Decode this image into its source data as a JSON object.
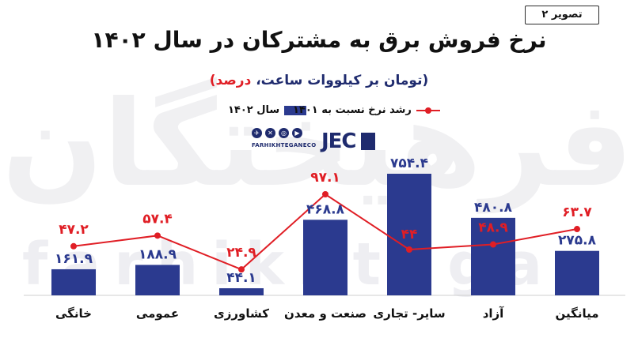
{
  "badge": "تصویر ۲",
  "title": "نرخ فروش برق به مشترکان در سال ۱۴۰۲",
  "subtitle_unit": "(تومان بر کیلووات ساعت،",
  "subtitle_pct": "درصد)",
  "legend": {
    "bar": "سال ۱۴۰۲",
    "line": "رشد نرخ نسبت به ۱۴۰۱"
  },
  "brand": {
    "url": "FARHIKHTEGANECO",
    "logo": "JEC",
    "icons": [
      "telegram-icon",
      "x-icon",
      "instagram-icon",
      "youtube-icon"
    ]
  },
  "watermark": {
    "fa": "فرهیختگان",
    "en": "farhikhtegan"
  },
  "colors": {
    "bar": "#2b3a8f",
    "line": "#e01e25",
    "text": "#111111"
  },
  "chart_data": {
    "type": "bar",
    "categories": [
      "خانگی",
      "عمومی",
      "کشاورزی",
      "صنعت و معدن",
      "سایر- تجاری",
      "آزاد",
      "میانگین"
    ],
    "series": [
      {
        "name": "سال ۱۴۰۲",
        "type": "bar",
        "values": [
          161.9,
          188.9,
          44.1,
          468.8,
          754.4,
          480.8,
          275.8
        ],
        "labels": [
          "۱۶۱.۹",
          "۱۸۸.۹",
          "۴۴.۱",
          "۴۶۸.۸",
          "۷۵۴.۴",
          "۴۸۰.۸",
          "۲۷۵.۸"
        ]
      },
      {
        "name": "رشد نرخ نسبت به ۱۴۰۱",
        "type": "line",
        "values": [
          47.2,
          57.4,
          24.9,
          97.1,
          44,
          48.9,
          63.7
        ],
        "labels": [
          "۴۷.۲",
          "۵۷.۴",
          "۲۴.۹",
          "۹۷.۱",
          "۴۴",
          "۴۸.۹",
          "۶۳.۷"
        ]
      }
    ],
    "title": "نرخ فروش برق به مشترکان در سال ۱۴۰۲",
    "ylim_bar": [
      0,
      800
    ],
    "ylim_line": [
      0,
      120
    ],
    "grid": false,
    "legend_position": "top-center"
  }
}
